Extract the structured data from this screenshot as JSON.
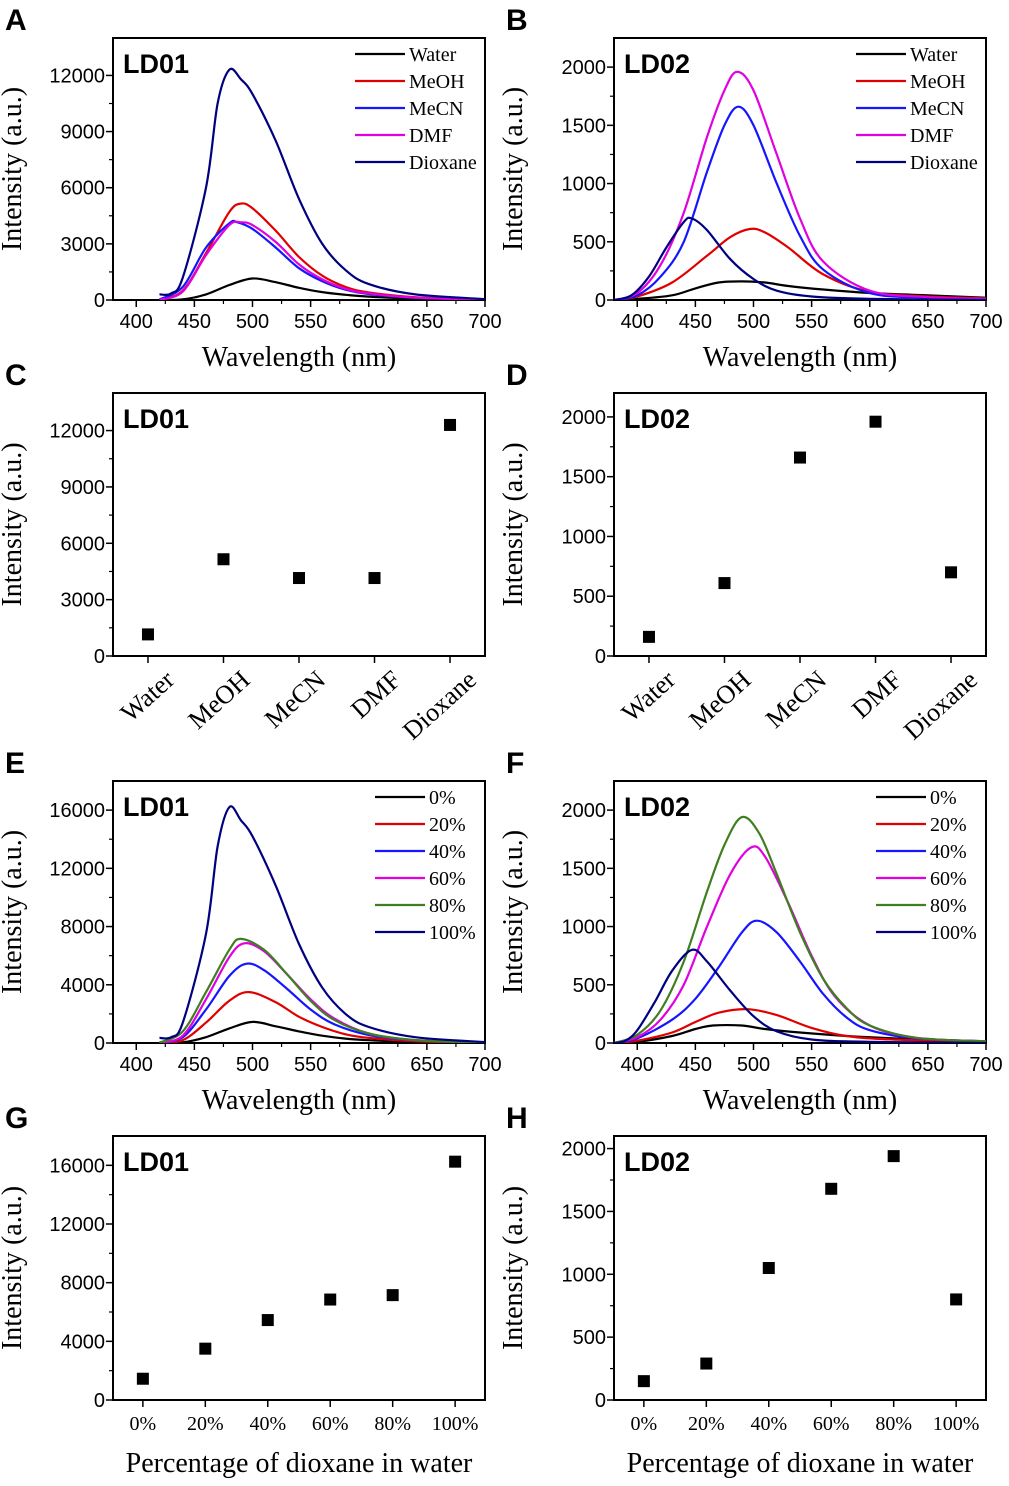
{
  "chart_data": [
    {
      "panel": "A",
      "label": "LD01",
      "type": "line",
      "xlabel": "Wavelength (nm)",
      "ylabel": "Intensity (a.u.)",
      "xlim": [
        380,
        700
      ],
      "ylim": [
        0,
        14000
      ],
      "xticks": [
        400,
        450,
        500,
        550,
        600,
        650,
        700
      ],
      "yticks": [
        0,
        3000,
        6000,
        9000,
        12000
      ],
      "legend": "top-right",
      "series": [
        {
          "name": "Water",
          "color": "#000000",
          "x": [
            420,
            440,
            460,
            480,
            500,
            520,
            540,
            560,
            580,
            600,
            640,
            700
          ],
          "y": [
            0,
            30,
            300,
            800,
            1150,
            950,
            650,
            420,
            280,
            180,
            80,
            10
          ]
        },
        {
          "name": "MeOH",
          "color": "#e00000",
          "x": [
            420,
            440,
            460,
            480,
            490,
            500,
            520,
            540,
            560,
            580,
            600,
            640,
            700
          ],
          "y": [
            20,
            500,
            2500,
            4700,
            5150,
            4900,
            3700,
            2300,
            1300,
            700,
            400,
            150,
            20
          ]
        },
        {
          "name": "MeCN",
          "color": "#1515ff",
          "x": [
            420,
            440,
            460,
            480,
            487,
            500,
            520,
            540,
            560,
            580,
            600,
            640,
            700
          ],
          "y": [
            30,
            700,
            2800,
            4100,
            4150,
            3800,
            2800,
            1700,
            1000,
            550,
            320,
            120,
            20
          ]
        },
        {
          "name": "DMF",
          "color": "#e000e0",
          "x": [
            420,
            440,
            460,
            480,
            490,
            500,
            520,
            540,
            560,
            580,
            600,
            640,
            700
          ],
          "y": [
            10,
            450,
            2400,
            4000,
            4150,
            4000,
            3100,
            1900,
            1100,
            600,
            350,
            130,
            20
          ]
        },
        {
          "name": "Dioxane",
          "color": "#000080",
          "x": [
            420,
            430,
            440,
            460,
            470,
            480,
            490,
            500,
            520,
            540,
            560,
            580,
            600,
            640,
            700
          ],
          "y": [
            300,
            350,
            1200,
            6000,
            10500,
            12300,
            11800,
            11000,
            8500,
            5400,
            3000,
            1600,
            850,
            300,
            50
          ]
        }
      ]
    },
    {
      "panel": "B",
      "label": "LD02",
      "type": "line",
      "xlabel": "Wavelength (nm)",
      "ylabel": "Intensity (a.u.)",
      "xlim": [
        380,
        700
      ],
      "ylim": [
        0,
        2250
      ],
      "xticks": [
        400,
        450,
        500,
        550,
        600,
        650,
        700
      ],
      "yticks": [
        0,
        500,
        1000,
        1500,
        2000
      ],
      "legend": "top-right",
      "series": [
        {
          "name": "Water",
          "color": "#000000",
          "x": [
            380,
            400,
            430,
            450,
            470,
            490,
            510,
            530,
            560,
            600,
            650,
            700
          ],
          "y": [
            0,
            10,
            40,
            100,
            150,
            160,
            150,
            120,
            90,
            60,
            40,
            20
          ]
        },
        {
          "name": "MeOH",
          "color": "#e00000",
          "x": [
            380,
            400,
            430,
            460,
            480,
            497,
            510,
            530,
            560,
            600,
            650,
            700
          ],
          "y": [
            0,
            30,
            150,
            380,
            540,
            610,
            580,
            450,
            220,
            70,
            30,
            15
          ]
        },
        {
          "name": "MeCN",
          "color": "#1515ff",
          "x": [
            380,
            400,
            420,
            440,
            460,
            475,
            487,
            500,
            520,
            540,
            560,
            600,
            650,
            700
          ],
          "y": [
            0,
            40,
            200,
            500,
            1100,
            1500,
            1660,
            1500,
            1000,
            550,
            260,
            60,
            20,
            10
          ]
        },
        {
          "name": "DMF",
          "color": "#e000e0",
          "x": [
            380,
            400,
            420,
            440,
            460,
            475,
            486,
            500,
            520,
            540,
            560,
            600,
            650,
            700
          ],
          "y": [
            0,
            60,
            300,
            750,
            1400,
            1800,
            1960,
            1800,
            1250,
            700,
            330,
            80,
            25,
            10
          ]
        },
        {
          "name": "Dioxane",
          "color": "#000080",
          "x": [
            380,
            395,
            410,
            425,
            440,
            447,
            460,
            480,
            500,
            520,
            550,
            600,
            700
          ],
          "y": [
            0,
            40,
            200,
            450,
            670,
            700,
            600,
            350,
            180,
            80,
            30,
            10,
            0
          ]
        }
      ]
    },
    {
      "panel": "C",
      "label": "LD01",
      "type": "scatter",
      "xlabel": "",
      "ylabel": "Intensity (a.u.)",
      "ylim": [
        0,
        14000
      ],
      "yticks": [
        0,
        3000,
        6000,
        9000,
        12000
      ],
      "categories": [
        "Water",
        "MeOH",
        "MeCN",
        "DMF",
        "Dioxane"
      ],
      "values": [
        1150,
        5150,
        4150,
        4150,
        12300
      ]
    },
    {
      "panel": "D",
      "label": "LD02",
      "type": "scatter",
      "xlabel": "",
      "ylabel": "Intensity (a.u.)",
      "ylim": [
        0,
        2200
      ],
      "yticks": [
        0,
        500,
        1000,
        1500,
        2000
      ],
      "categories": [
        "Water",
        "MeOH",
        "MeCN",
        "DMF",
        "Dioxane"
      ],
      "values": [
        160,
        610,
        1660,
        1960,
        700
      ]
    },
    {
      "panel": "E",
      "label": "LD01",
      "type": "line",
      "xlabel": "Wavelength (nm)",
      "ylabel": "Intensity (a.u.)",
      "xlim": [
        380,
        700
      ],
      "ylim": [
        0,
        18000
      ],
      "xticks": [
        400,
        450,
        500,
        550,
        600,
        650,
        700
      ],
      "yticks": [
        0,
        4000,
        8000,
        12000,
        16000
      ],
      "legend": "top-right",
      "series": [
        {
          "name": "0%",
          "color": "#000000",
          "x": [
            420,
            440,
            460,
            480,
            500,
            520,
            540,
            560,
            580,
            600,
            640,
            700
          ],
          "y": [
            0,
            40,
            400,
            1000,
            1450,
            1150,
            800,
            500,
            300,
            190,
            80,
            10
          ]
        },
        {
          "name": "20%",
          "color": "#e00000",
          "x": [
            420,
            440,
            460,
            480,
            497,
            520,
            540,
            560,
            580,
            600,
            640,
            700
          ],
          "y": [
            10,
            200,
            1400,
            2900,
            3500,
            2800,
            1800,
            1100,
            600,
            350,
            120,
            20
          ]
        },
        {
          "name": "40%",
          "color": "#1515ff",
          "x": [
            420,
            440,
            460,
            480,
            495,
            510,
            530,
            550,
            570,
            600,
            640,
            700
          ],
          "y": [
            20,
            400,
            2300,
            4600,
            5450,
            5000,
            3700,
            2300,
            1300,
            550,
            180,
            30
          ]
        },
        {
          "name": "60%",
          "color": "#e000e0",
          "x": [
            420,
            440,
            460,
            480,
            493,
            510,
            530,
            550,
            570,
            600,
            640,
            700
          ],
          "y": [
            20,
            500,
            3000,
            5900,
            6850,
            6300,
            4700,
            3000,
            1700,
            650,
            200,
            30
          ]
        },
        {
          "name": "80%",
          "color": "#3f7f1f",
          "x": [
            420,
            440,
            460,
            480,
            490,
            510,
            530,
            550,
            570,
            600,
            640,
            700
          ],
          "y": [
            30,
            800,
            3500,
            6400,
            7150,
            6400,
            4700,
            2900,
            1600,
            650,
            200,
            30
          ]
        },
        {
          "name": "100%",
          "color": "#000080",
          "x": [
            420,
            430,
            440,
            460,
            470,
            480,
            490,
            500,
            520,
            540,
            560,
            580,
            600,
            640,
            700
          ],
          "y": [
            350,
            400,
            1400,
            7500,
            13500,
            16200,
            15300,
            14200,
            10800,
            6800,
            3800,
            2000,
            1100,
            400,
            60
          ]
        }
      ]
    },
    {
      "panel": "F",
      "label": "LD02",
      "type": "line",
      "xlabel": "Wavelength (nm)",
      "ylabel": "Intensity (a.u.)",
      "xlim": [
        380,
        700
      ],
      "ylim": [
        0,
        2250
      ],
      "xticks": [
        400,
        450,
        500,
        550,
        600,
        650,
        700
      ],
      "yticks": [
        0,
        500,
        1000,
        1500,
        2000
      ],
      "legend": "top-right",
      "series": [
        {
          "name": "0%",
          "color": "#000000",
          "x": [
            380,
            400,
            430,
            450,
            465,
            490,
            510,
            540,
            580,
            620,
            660,
            700
          ],
          "y": [
            0,
            10,
            60,
            120,
            150,
            150,
            120,
            90,
            60,
            40,
            25,
            15
          ]
        },
        {
          "name": "20%",
          "color": "#e00000",
          "x": [
            380,
            400,
            430,
            450,
            470,
            495,
            520,
            550,
            580,
            620,
            700
          ],
          "y": [
            0,
            20,
            90,
            180,
            260,
            290,
            240,
            130,
            60,
            30,
            10
          ]
        },
        {
          "name": "40%",
          "color": "#1515ff",
          "x": [
            380,
            400,
            430,
            450,
            470,
            490,
            503,
            520,
            540,
            560,
            580,
            600,
            640,
            700
          ],
          "y": [
            0,
            40,
            200,
            380,
            650,
            950,
            1050,
            950,
            700,
            420,
            220,
            110,
            40,
            15
          ]
        },
        {
          "name": "60%",
          "color": "#e000e0",
          "x": [
            380,
            400,
            420,
            440,
            460,
            480,
            498,
            510,
            530,
            550,
            570,
            600,
            640,
            700
          ],
          "y": [
            0,
            50,
            200,
            500,
            1000,
            1450,
            1680,
            1600,
            1200,
            750,
            400,
            150,
            45,
            15
          ]
        },
        {
          "name": "80%",
          "color": "#3f7f1f",
          "x": [
            380,
            400,
            420,
            440,
            460,
            475,
            490,
            505,
            520,
            540,
            560,
            580,
            600,
            640,
            700
          ],
          "y": [
            0,
            70,
            280,
            700,
            1300,
            1700,
            1940,
            1800,
            1450,
            950,
            550,
            300,
            150,
            45,
            15
          ]
        },
        {
          "name": "100%",
          "color": "#000080",
          "x": [
            380,
            390,
            400,
            415,
            430,
            447,
            460,
            480,
            500,
            520,
            550,
            600,
            700
          ],
          "y": [
            0,
            20,
            110,
            350,
            620,
            800,
            700,
            450,
            230,
            100,
            30,
            10,
            0
          ]
        }
      ]
    },
    {
      "panel": "G",
      "label": "LD01",
      "type": "scatter",
      "xlabel": "Percentage of dioxane in water",
      "ylabel": "Intensity (a.u.)",
      "ylim": [
        0,
        18000
      ],
      "yticks": [
        0,
        4000,
        8000,
        12000,
        16000
      ],
      "categories": [
        "0%",
        "20%",
        "40%",
        "60%",
        "80%",
        "100%"
      ],
      "values": [
        1450,
        3500,
        5450,
        6850,
        7150,
        16250
      ]
    },
    {
      "panel": "H",
      "label": "LD02",
      "type": "scatter",
      "xlabel": "Percentage of dioxane in water",
      "ylabel": "Intensity (a.u.)",
      "ylim": [
        0,
        2100
      ],
      "yticks": [
        0,
        500,
        1000,
        1500,
        2000
      ],
      "categories": [
        "0%",
        "20%",
        "40%",
        "60%",
        "80%",
        "100%"
      ],
      "values": [
        150,
        290,
        1050,
        1680,
        1940,
        800
      ]
    }
  ]
}
